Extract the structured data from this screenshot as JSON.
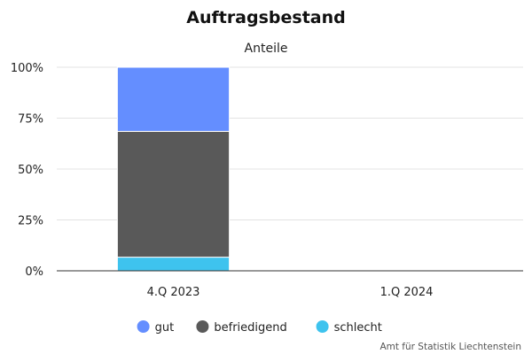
{
  "chart_data": {
    "type": "bar",
    "stacked": true,
    "title": "Auftragsbestand",
    "subtitle": "Anteile",
    "categories": [
      "4.Q 2023",
      "1.Q 2024"
    ],
    "series": [
      {
        "name": "gut",
        "color": "#648eff",
        "values": [
          31.5,
          null
        ]
      },
      {
        "name": "befriedigend",
        "color": "#595959",
        "values": [
          61.8,
          null
        ]
      },
      {
        "name": "schlecht",
        "color": "#3ec3ee",
        "values": [
          6.7,
          null
        ]
      }
    ],
    "stack_order_bottom_to_top": [
      "schlecht",
      "befriedigend",
      "gut"
    ],
    "ylim": [
      0,
      100
    ],
    "yticks": [
      0,
      25,
      50,
      75,
      100
    ],
    "ytick_labels": [
      "0%",
      "25%",
      "50%",
      "75%",
      "100%"
    ],
    "grid": true,
    "legend_position": "bottom-center"
  },
  "source": "Amt für Statistik Liechtenstein"
}
